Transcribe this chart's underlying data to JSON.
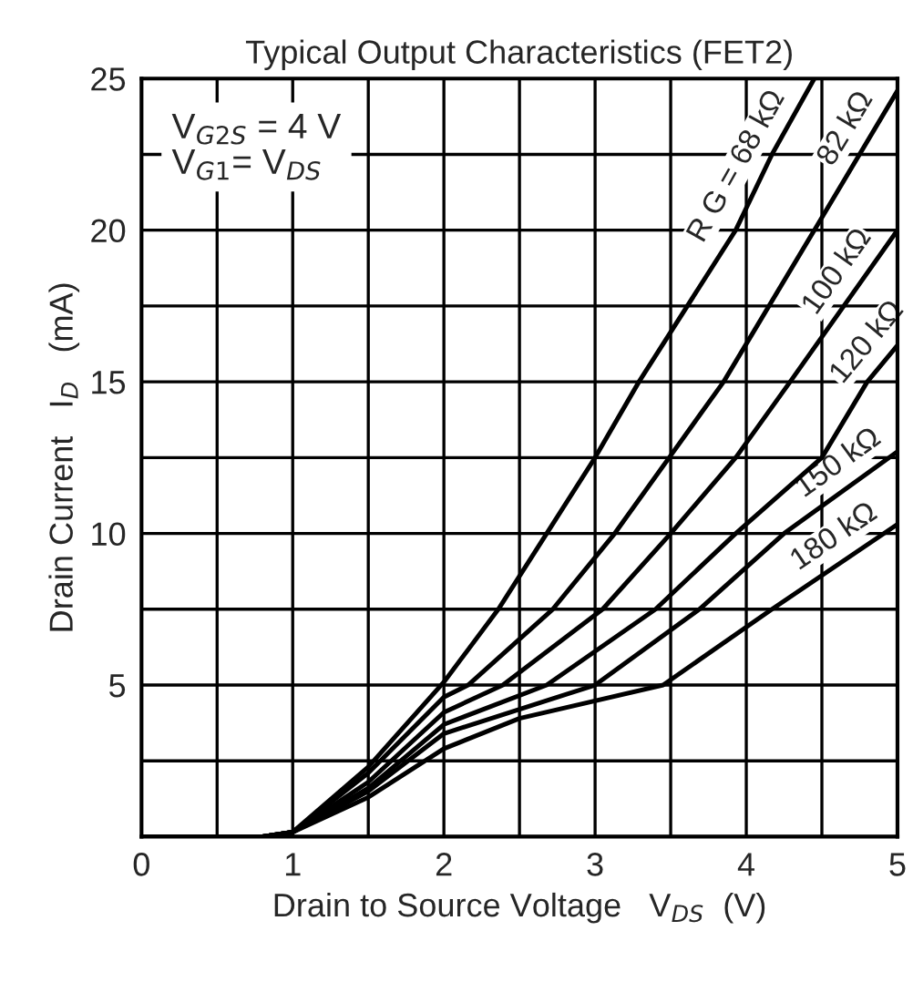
{
  "chart_data": {
    "type": "line",
    "title": "Typical Output Characteristics (FET2)",
    "xlabel": "Drain to Source Voltage   V$_{DS}$  (V)",
    "ylabel": "Drain Current   I$_{D}$   (mA)",
    "xlim": [
      0,
      5
    ],
    "ylim": [
      0,
      25
    ],
    "xticks": [
      0,
      {
        "value": 0.5,
        "label": null
      },
      1,
      {
        "value": 1.5,
        "label": null
      },
      2,
      {
        "value": 2.5,
        "label": null
      },
      3,
      {
        "value": 3.5,
        "label": null
      },
      4,
      {
        "value": 4.5,
        "label": null
      },
      5
    ],
    "yticks": [
      {
        "value": 0,
        "label": null
      },
      {
        "value": 2.5,
        "label": null
      },
      5,
      {
        "value": 7.5,
        "label": null
      },
      10,
      {
        "value": 12.5,
        "label": null
      },
      15,
      {
        "value": 17.5,
        "label": null
      },
      20,
      {
        "value": 22.5,
        "label": null
      },
      25
    ],
    "grid": true,
    "legend": false,
    "line_style": "solid",
    "marker": "none",
    "annotations": [
      "V$_{G2S}$ = 4 V\nV$_{G1}$= V$_{DS}$"
    ],
    "series": [
      {
        "name": "R G = 68 kΩ",
        "color": "#000000",
        "x": [
          0,
          0.8,
          1.0,
          1.5,
          2.0,
          2.36,
          2.68,
          3.0,
          3.29,
          3.93,
          4.17,
          4.45
        ],
        "values": [
          0,
          0,
          0.15,
          2.3,
          5.1,
          7.5,
          10,
          12.5,
          15,
          20,
          22.5,
          25
        ]
      },
      {
        "name": "82 kΩ",
        "color": "#000000",
        "x": [
          0,
          0.8,
          1.0,
          1.5,
          2.0,
          2.16,
          2.72,
          3.13,
          3.49,
          3.85,
          4.45,
          5.0
        ],
        "values": [
          0,
          0,
          0.15,
          2.1,
          4.6,
          5,
          7.5,
          10,
          12.5,
          15,
          20,
          24.6
        ]
      },
      {
        "name": "100 kΩ",
        "color": "#000000",
        "x": [
          0,
          0.8,
          1.0,
          1.5,
          2.0,
          2.39,
          3.05,
          3.5,
          3.93,
          4.29,
          5.0
        ],
        "values": [
          0,
          0,
          0.15,
          1.8,
          4.1,
          5,
          7.5,
          10,
          12.5,
          15,
          20
        ]
      },
      {
        "name": "120 kΩ",
        "color": "#000000",
        "x": [
          0,
          0.8,
          1.0,
          1.5,
          2.0,
          2.68,
          3.4,
          3.93,
          4.5,
          4.8,
          5.0
        ],
        "values": [
          0,
          0,
          0.15,
          1.6,
          3.7,
          5,
          7.5,
          10,
          12.5,
          15,
          16.2
        ]
      },
      {
        "name": "150 kΩ",
        "color": "#000000",
        "x": [
          0,
          0.8,
          1.0,
          1.5,
          2.0,
          3.0,
          3.69,
          4.25,
          5.0
        ],
        "values": [
          0,
          0,
          0.15,
          1.5,
          3.4,
          5,
          7.5,
          10,
          12.7
        ]
      },
      {
        "name": "180 kΩ",
        "color": "#000000",
        "x": [
          0,
          0.8,
          1.0,
          1.5,
          2.0,
          2.5,
          3.45,
          4.17,
          5.0
        ],
        "values": [
          0,
          0,
          0.15,
          1.3,
          2.9,
          3.9,
          5,
          7.5,
          10.3
        ]
      }
    ]
  }
}
